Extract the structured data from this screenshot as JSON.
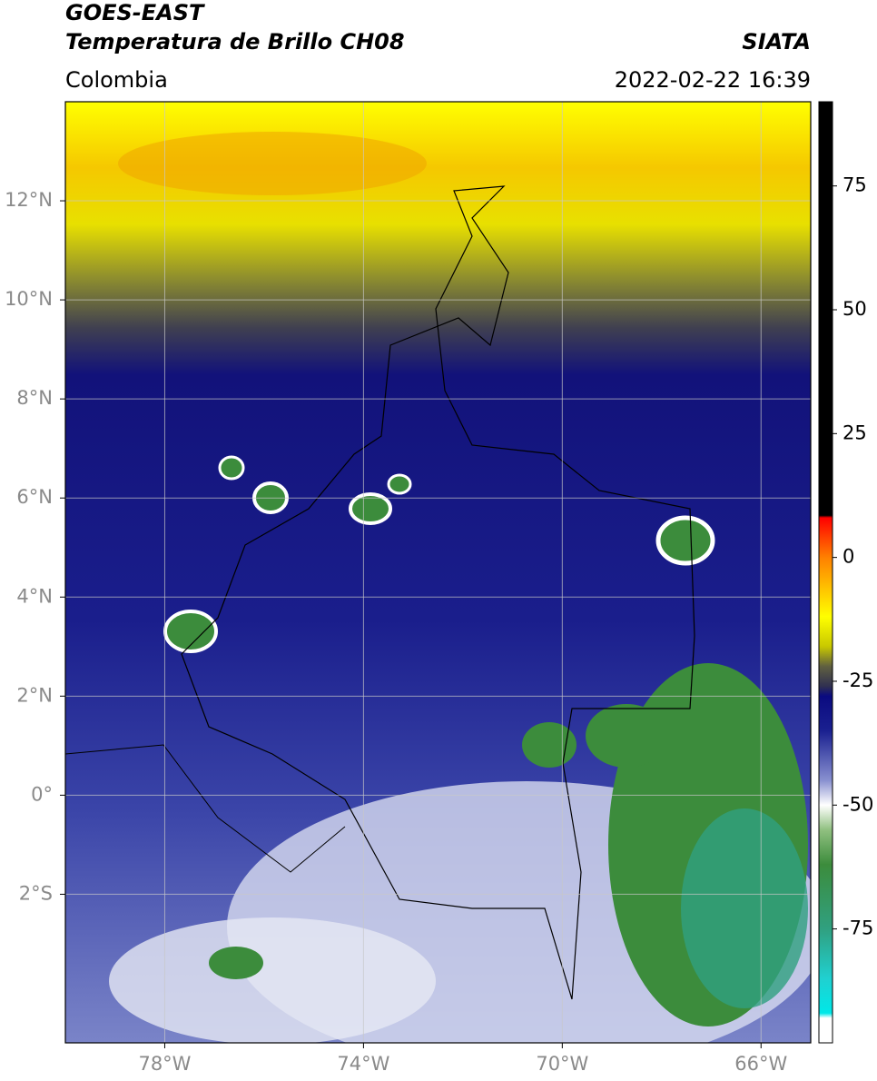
{
  "header": {
    "title_lines": [
      "GOES-EAST",
      "Temperatura de Brillo CH08"
    ],
    "region": "Colombia",
    "source": "SIATA",
    "datetime": "2022-02-22 16:39"
  },
  "map": {
    "xlim": [
      -80,
      -65
    ],
    "ylim": [
      -5,
      14
    ],
    "xticks": [
      {
        "value": -78,
        "label": "78°W"
      },
      {
        "value": -74,
        "label": "74°W"
      },
      {
        "value": -70,
        "label": "70°W"
      },
      {
        "value": -66,
        "label": "66°W"
      }
    ],
    "yticks": [
      {
        "value": -2,
        "label": "2°S"
      },
      {
        "value": 0,
        "label": "0°"
      },
      {
        "value": 2,
        "label": "2°N"
      },
      {
        "value": 4,
        "label": "4°N"
      },
      {
        "value": 6,
        "label": "6°N"
      },
      {
        "value": 8,
        "label": "8°N"
      },
      {
        "value": 10,
        "label": "10°N"
      },
      {
        "value": 12,
        "label": "12°N"
      }
    ],
    "grid": true
  },
  "colorbar": {
    "lim": [
      -98,
      92
    ],
    "ticks": [
      75,
      50,
      25,
      0,
      -25,
      -50,
      -75
    ],
    "stops": [
      {
        "value": 92,
        "color": "#000000"
      },
      {
        "value": 8.5,
        "color": "#000000"
      },
      {
        "value": 8,
        "color": "#ff0000"
      },
      {
        "value": 0,
        "color": "#ff8000"
      },
      {
        "value": -12,
        "color": "#ffff00"
      },
      {
        "value": -18,
        "color": "#c8c800"
      },
      {
        "value": -22,
        "color": "#606040"
      },
      {
        "value": -26,
        "color": "#303050"
      },
      {
        "value": -28,
        "color": "#0a0a80"
      },
      {
        "value": -35,
        "color": "#1a2090"
      },
      {
        "value": -45,
        "color": "#8890d0"
      },
      {
        "value": -50,
        "color": "#ffffff"
      },
      {
        "value": -55,
        "color": "#90c080"
      },
      {
        "value": -62,
        "color": "#3c8c3c"
      },
      {
        "value": -75,
        "color": "#30a080"
      },
      {
        "value": -85,
        "color": "#20d0d0"
      },
      {
        "value": -92,
        "color": "#00e8e8"
      },
      {
        "value": -93,
        "color": "#ffffff"
      },
      {
        "value": -98,
        "color": "#ffffff"
      }
    ]
  }
}
